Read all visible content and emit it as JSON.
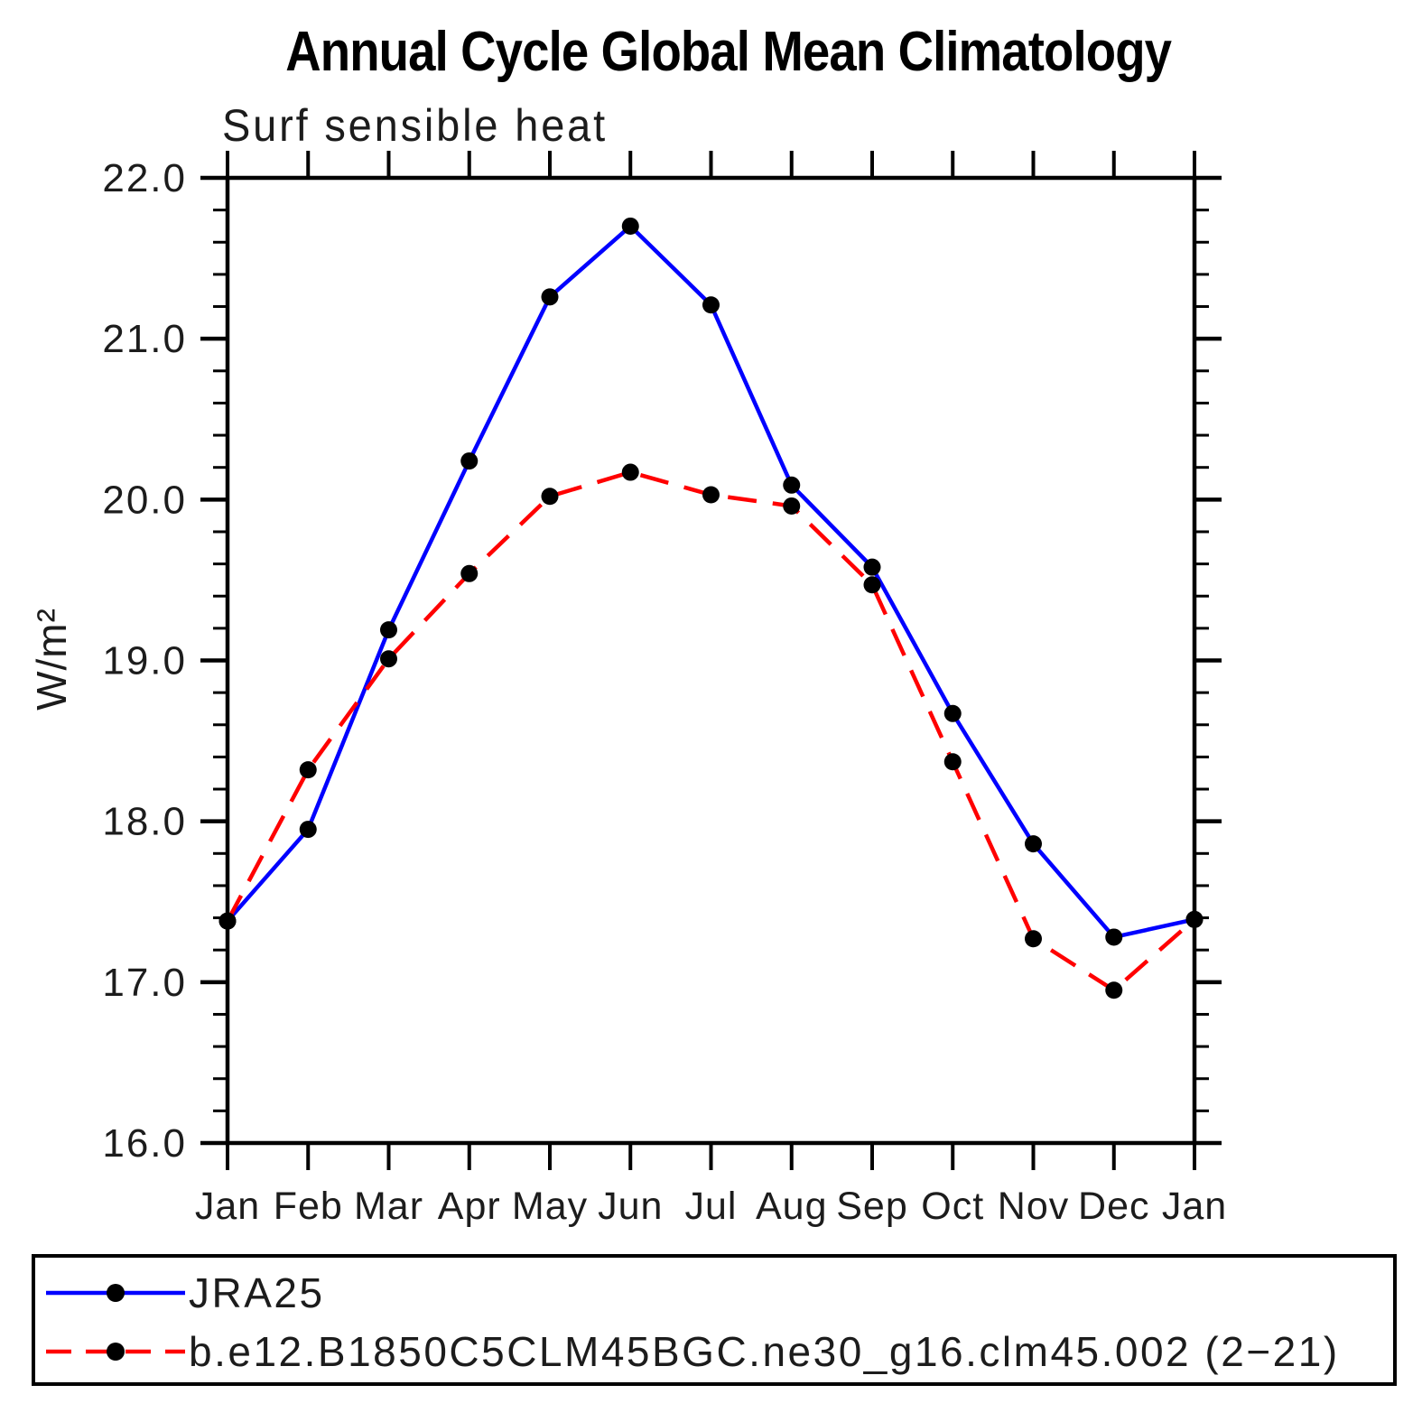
{
  "title": "Annual Cycle Global Mean Climatology",
  "chart_data": {
    "type": "line",
    "title": "Annual Cycle Global Mean Climatology",
    "subtitle": "Surf sensible heat",
    "ylabel": "W/m²",
    "xlabel": "",
    "categories": [
      "Jan",
      "Feb",
      "Mar",
      "Apr",
      "May",
      "Jun",
      "Jul",
      "Aug",
      "Sep",
      "Oct",
      "Nov",
      "Dec",
      "Jan"
    ],
    "ylim": [
      16.0,
      22.0
    ],
    "yticks": [
      16,
      17,
      18,
      19,
      20,
      21,
      22
    ],
    "ytick_labels": [
      "16.0",
      "17.0",
      "18.0",
      "19.0",
      "20.0",
      "21.0",
      "22.0"
    ],
    "ytick_minor_step": 0.2,
    "grid": false,
    "legend_position": "bottom",
    "marker_color": "#000000",
    "series": [
      {
        "name": "JRA25",
        "color": "#0000ff",
        "style": "solid",
        "values": [
          17.38,
          17.95,
          19.19,
          20.24,
          21.26,
          21.7,
          21.21,
          20.09,
          19.58,
          18.67,
          17.86,
          17.28,
          17.39
        ]
      },
      {
        "name": "b.e12.B1850C5CLM45BGC.ne30_g16.clm45.002 (2−21)",
        "color": "#ff0000",
        "style": "dashed",
        "values": [
          17.38,
          18.32,
          19.01,
          19.54,
          20.02,
          20.17,
          20.03,
          19.96,
          19.47,
          18.37,
          17.27,
          16.95,
          17.39
        ]
      }
    ]
  }
}
